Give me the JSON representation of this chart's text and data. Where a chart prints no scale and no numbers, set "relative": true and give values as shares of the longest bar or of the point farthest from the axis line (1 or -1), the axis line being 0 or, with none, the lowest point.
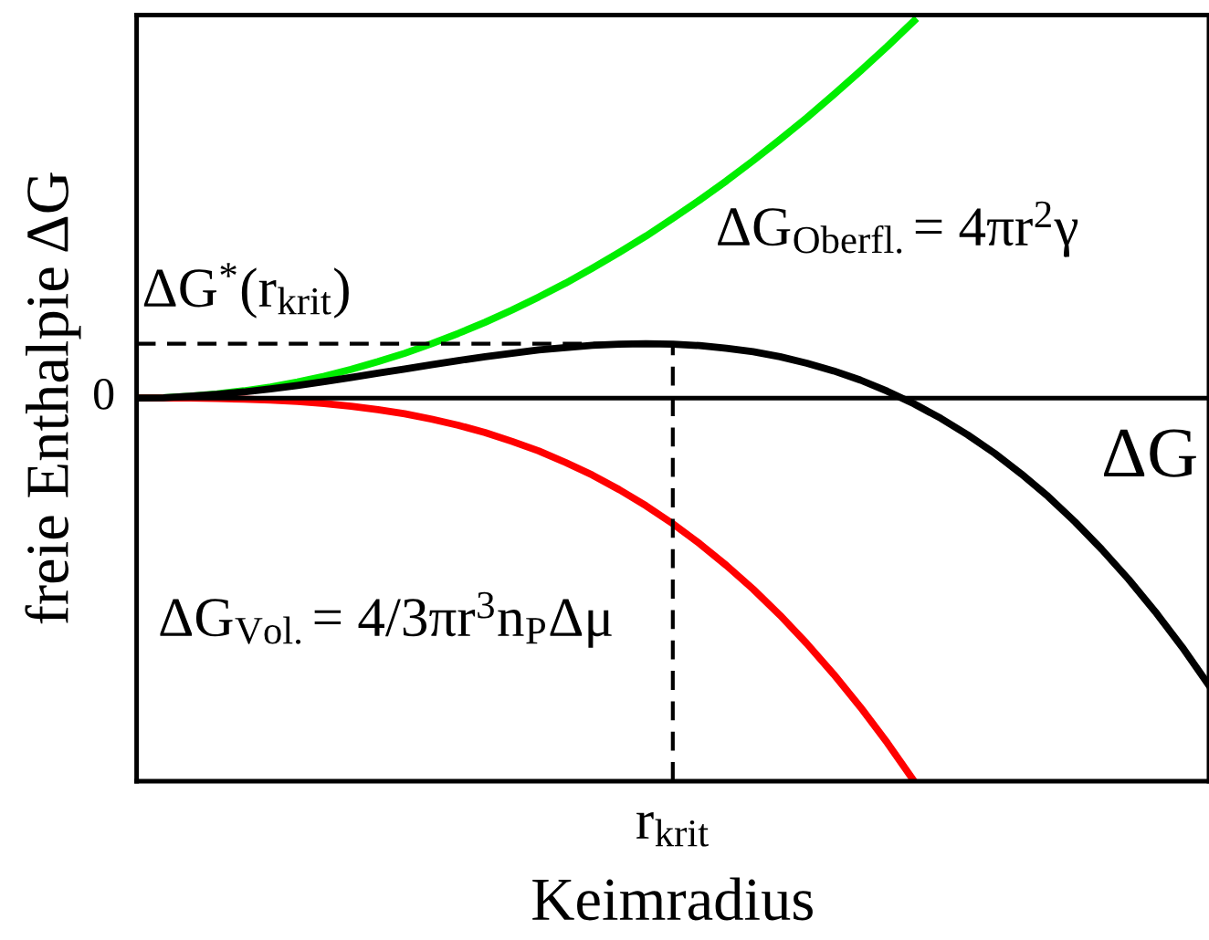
{
  "chart_data": {
    "type": "line",
    "relative": true,
    "xlabel": "Keimradius",
    "ylabel": "freie Enthalpie ΔG",
    "categories": [
      null,
      null,
      null,
      null,
      null,
      null,
      null,
      null,
      null,
      null,
      null,
      null,
      null,
      null,
      null,
      null,
      null,
      null,
      null,
      null,
      null,
      null,
      null,
      null,
      null,
      null,
      null,
      null,
      null,
      null,
      null,
      null,
      null,
      null,
      null,
      null,
      null,
      null,
      null,
      null,
      null
    ],
    "series": [
      {
        "name": "ΔG$_{Oberfl.}$= 4πr$^{2}$γ",
        "color": "#00ee00",
        "values": [
          0,
          0.001,
          0.005,
          0.011,
          0.019,
          0.029,
          0.042,
          0.057,
          0.075,
          0.095,
          0.117,
          0.142,
          0.169,
          0.198,
          0.23,
          0.264,
          0.3,
          0.339,
          0.38,
          0.423,
          0.469,
          0.517,
          0.567,
          0.62,
          0.675,
          0.732,
          0.792,
          0.854,
          0.918,
          0.985,
          null,
          null,
          null,
          null,
          null,
          null,
          null,
          null,
          null,
          null,
          null
        ]
      },
      {
        "name": "ΔG$_{Vol.}$= 4/3πr$^{3}$n$_{P}$Δμ",
        "color": "#ff0000",
        "values": [
          0,
          0,
          0,
          -0.001,
          -0.003,
          -0.005,
          -0.009,
          -0.014,
          -0.021,
          -0.03,
          -0.041,
          -0.055,
          -0.071,
          -0.09,
          -0.113,
          -0.138,
          -0.168,
          -0.201,
          -0.239,
          -0.281,
          -0.328,
          -0.38,
          -0.437,
          -0.499,
          -0.567,
          -0.641,
          -0.721,
          -0.807,
          -0.9,
          -1.0,
          null,
          null,
          null,
          null,
          null,
          null,
          null,
          null,
          null,
          null,
          null
        ]
      },
      {
        "name": "ΔG",
        "color": "#000000",
        "values": [
          0,
          0.001,
          0.005,
          0.01,
          0.016,
          0.024,
          0.033,
          0.043,
          0.054,
          0.065,
          0.076,
          0.087,
          0.098,
          0.108,
          0.117,
          0.126,
          0.132,
          0.138,
          0.141,
          0.142,
          0.141,
          0.137,
          0.13,
          0.121,
          0.108,
          0.091,
          0.071,
          0.047,
          0.018,
          -0.015,
          -0.053,
          -0.096,
          -0.144,
          -0.198,
          -0.257,
          -0.323,
          -0.395,
          -0.473,
          -0.558,
          -0.65,
          -0.75
        ]
      }
    ],
    "ref_lines": [
      {
        "axis": "y",
        "value": 0,
        "label": "0",
        "color": "#000000",
        "line_style": "solid"
      },
      {
        "axis": "y",
        "value": 0.142,
        "color": "#000000",
        "line_style": "dashed"
      }
    ],
    "annotations": [
      "ΔG$^{*}$(r$_{krit}$)",
      "r$_{krit}$"
    ],
    "legend": false
  }
}
